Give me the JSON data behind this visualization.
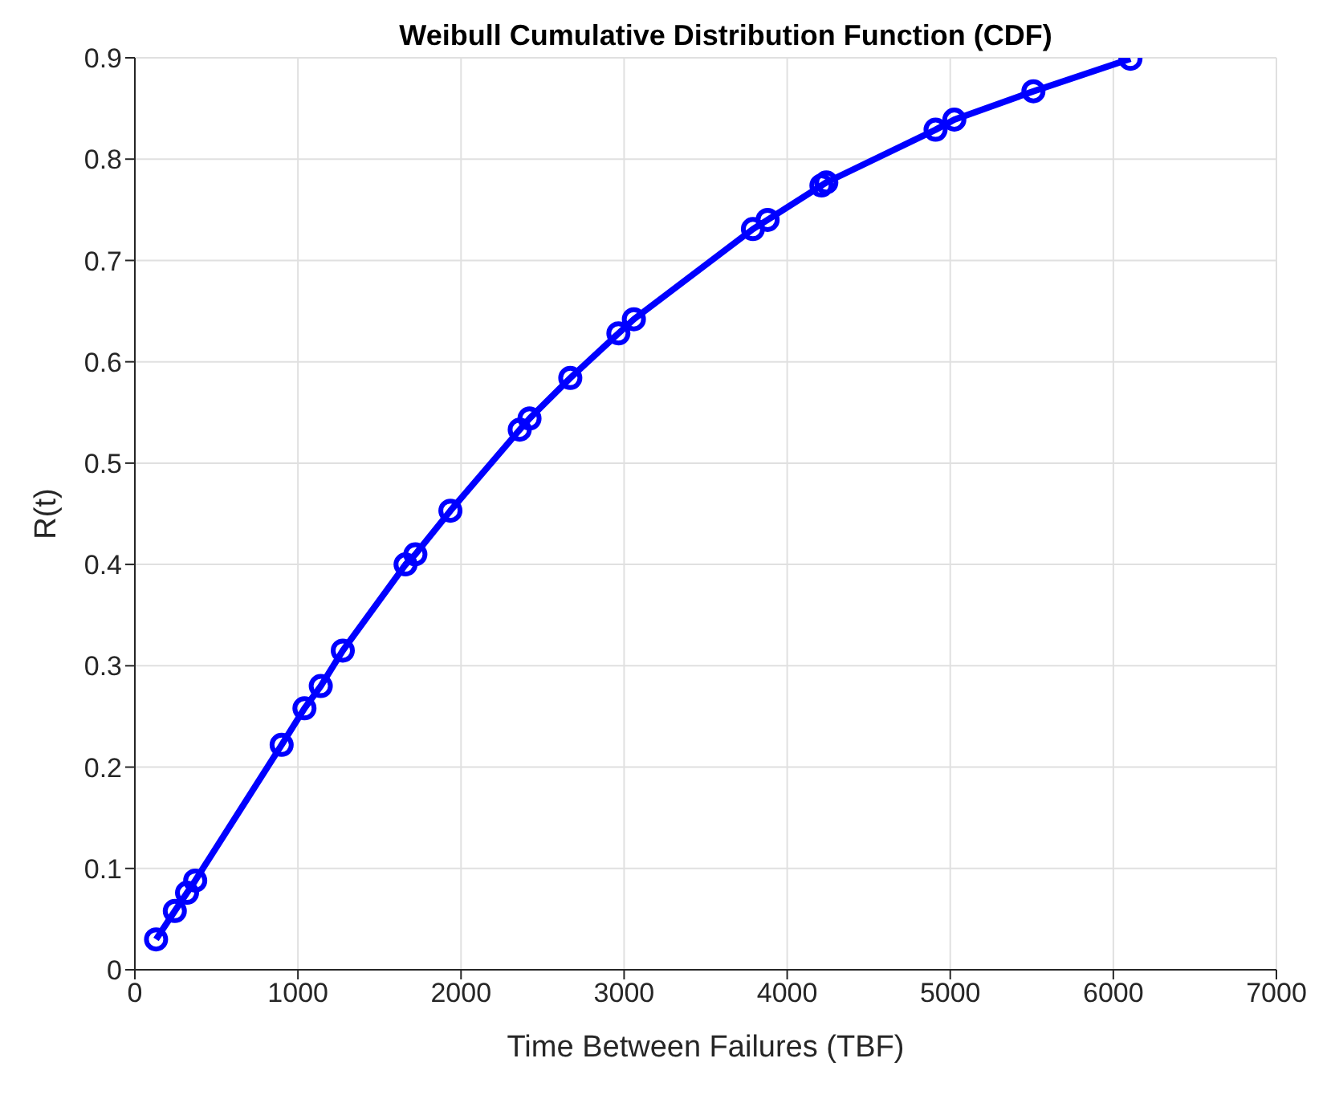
{
  "chart_data": {
    "type": "line",
    "title": "Weibull Cumulative Distribution Function (CDF)",
    "xlabel": "Time Between Failures (TBF)",
    "ylabel": "R(t)",
    "x": [
      130,
      245,
      320,
      370,
      900,
      1040,
      1140,
      1275,
      1660,
      1720,
      1935,
      2360,
      2420,
      2670,
      2965,
      3060,
      3790,
      3880,
      4210,
      4240,
      4910,
      5025,
      5510,
      6105
    ],
    "series": [
      {
        "color": "#0000ff",
        "values": [
          0.03,
          0.058,
          0.076,
          0.088,
          0.222,
          0.258,
          0.28,
          0.315,
          0.4,
          0.41,
          0.453,
          0.533,
          0.544,
          0.584,
          0.628,
          0.642,
          0.731,
          0.74,
          0.774,
          0.777,
          0.829,
          0.839,
          0.867,
          0.899
        ]
      }
    ],
    "xlim": [
      0,
      7000
    ],
    "xticks": [
      0,
      1000,
      2000,
      3000,
      4000,
      5000,
      6000,
      7000
    ],
    "ylim": [
      0,
      0.9
    ],
    "yticks": [
      0,
      0.1,
      0.2,
      0.3,
      0.4,
      0.5,
      0.6,
      0.7,
      0.8,
      0.9
    ],
    "grid": true,
    "marker": "circle",
    "line_style": "solid"
  }
}
